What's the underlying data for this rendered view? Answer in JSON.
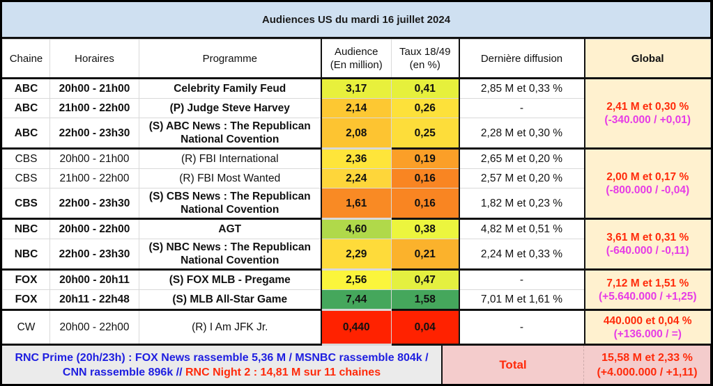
{
  "title": "Audiences US du mardi 16 juillet 2024",
  "headers": {
    "chaine": "Chaine",
    "horaires": "Horaires",
    "programme": "Programme",
    "audience_l1": "Audience",
    "audience_l2": "(En million)",
    "taux_l1": "Taux 18/49",
    "taux_l2": "(en %)",
    "derniere": "Dernière diffusion",
    "global": "Global"
  },
  "rows": [
    {
      "chaine": "ABC",
      "horaires": "20h00 - 21h00",
      "programme": "Celebrity Family Feud",
      "audience": "3,17",
      "taux": "0,41",
      "derniere": "2,85 M et 0,33 %",
      "aud_color": "#e8f03c",
      "taux_color": "#e6f03c",
      "bold": true
    },
    {
      "chaine": "ABC",
      "horaires": "21h00 - 22h00",
      "programme": "(P) Judge Steve Harvey",
      "audience": "2,14",
      "taux": "0,26",
      "derniere": "-",
      "aud_color": "#fdc832",
      "taux_color": "#fde13a",
      "bold": true
    },
    {
      "chaine": "ABC",
      "horaires": "22h00 - 23h30",
      "programme": "(S) ABC News : The Republican National Covention",
      "audience": "2,08",
      "taux": "0,25",
      "derniere": "2,28 M et 0,30 %",
      "aud_color": "#fdc431",
      "taux_color": "#fddd3a",
      "bold": true
    },
    {
      "chaine": "CBS",
      "horaires": "20h00 - 21h00",
      "programme": "(R) FBI International",
      "audience": "2,36",
      "taux": "0,19",
      "derniere": "2,65 M et 0,20 %",
      "aud_color": "#fee53a",
      "taux_color": "#fb9f28",
      "bold": false
    },
    {
      "chaine": "CBS",
      "horaires": "21h00 - 22h00",
      "programme": "(R) FBI Most Wanted",
      "audience": "2,24",
      "taux": "0,16",
      "derniere": "2,57 M et 0,20 %",
      "aud_color": "#fed63a",
      "taux_color": "#f98522",
      "bold": false
    },
    {
      "chaine": "CBS",
      "horaires": "22h00 - 23h30",
      "programme": "(S) CBS News : The Republican National Covention",
      "audience": "1,61",
      "taux": "0,16",
      "derniere": "1,82 M et 0,23 %",
      "aud_color": "#f98a24",
      "taux_color": "#f98522",
      "bold": true
    },
    {
      "chaine": "NBC",
      "horaires": "20h00 - 22h00",
      "programme": "AGT",
      "audience": "4,60",
      "taux": "0,38",
      "derniere": "4,82 M et 0,51 %",
      "aud_color": "#b0d94a",
      "taux_color": "#ecf53e",
      "bold": true
    },
    {
      "chaine": "NBC",
      "horaires": "22h00 - 23h30",
      "programme": "(S) NBC News : The Republican National Covention",
      "audience": "2,29",
      "taux": "0,21",
      "derniere": "2,24 M et 0,33 %",
      "aud_color": "#fedb3a",
      "taux_color": "#fbb22c",
      "bold": true
    },
    {
      "chaine": "FOX",
      "horaires": "20h00 - 20h11",
      "programme": "(S) FOX MLB - Pregame",
      "audience": "2,56",
      "taux": "0,47",
      "derniere": "-",
      "aud_color": "#fbf53c",
      "taux_color": "#e4f040",
      "bold": true
    },
    {
      "chaine": "FOX",
      "horaires": "20h11 - 22h48",
      "programme": "(S) MLB All-Star Game",
      "audience": "7,44",
      "taux": "1,58",
      "derniere": "7,01 M et 1,61 %",
      "aud_color": "#45a75c",
      "taux_color": "#45a75c",
      "bold": true
    },
    {
      "chaine": "CW",
      "horaires": "20h00 - 22h00",
      "programme": "(R) I Am JFK Jr.",
      "audience": "0,440",
      "taux": "0,04",
      "derniere": "-",
      "aud_color": "#ff2200",
      "taux_color": "#ff2200",
      "bold": false
    }
  ],
  "globals": [
    {
      "main": "2,41 M et 0,30 %",
      "delta": "(-340.000 / +0,01)"
    },
    {
      "main": "2,00 M et 0,17 %",
      "delta": "(-800.000 / -0,04)"
    },
    {
      "main": "3,61 M et 0,31 %",
      "delta": "(-640.000 / -0,11)"
    },
    {
      "main": "7,12 M et 1,51 %",
      "delta": "(+5.640.000 / +1,25)"
    },
    {
      "main": "440.000 et 0,04 %",
      "delta": "(+136.000 / =)"
    }
  ],
  "footer": {
    "note_blue": "RNC Prime (20h/23h) : FOX News rassemble 5,36 M / MSNBC rassemble 804k / CNN rassemble 896k // ",
    "note_red": "RNC Night 2 : 14,81 M sur 11 chaines",
    "total_label": "Total",
    "total_main": "15,58 M et 2,33 %",
    "total_delta": "(+4.000.000 / +1,11)"
  },
  "colors": {
    "title_bg": "#cfe0f1",
    "global_bg": "#fff1cf",
    "global_text": "#ff2a0a",
    "delta_text": "#e63ce6",
    "footer_note_blue": "#1e1ee0",
    "total_bg": "#f4cccc"
  }
}
